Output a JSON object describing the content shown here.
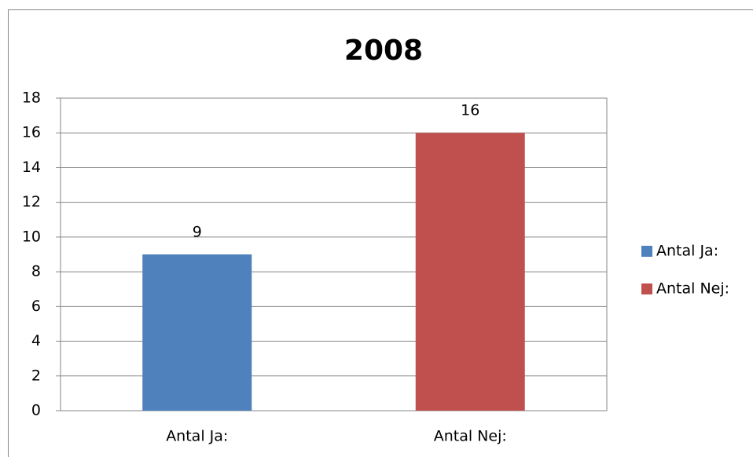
{
  "chart_data": {
    "type": "bar",
    "title": "2008",
    "categories": [
      "Antal Ja:",
      "Antal Nej:"
    ],
    "values": [
      9,
      16
    ],
    "colors": [
      "#4f81bd",
      "#c0504d"
    ],
    "ylim": [
      0,
      18
    ],
    "yticks": [
      0,
      2,
      4,
      6,
      8,
      10,
      12,
      14,
      16,
      18
    ],
    "grid": true,
    "legend": "right"
  }
}
